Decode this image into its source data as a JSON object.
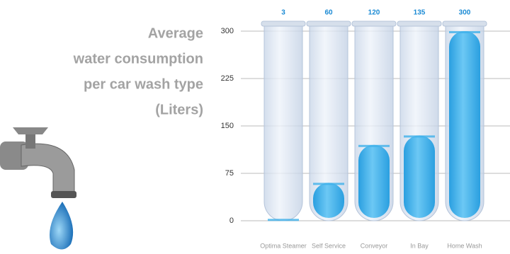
{
  "chart_data": {
    "type": "bar",
    "title": [
      "Average",
      "water consumption",
      "per car wash type",
      "(Liters)"
    ],
    "categories": [
      "Optima Steamer",
      "Self Service",
      "Conveyor",
      "In Bay",
      "Home Wash"
    ],
    "values": [
      3,
      60,
      120,
      135,
      300
    ],
    "color": "#3fb0ea",
    "ylim": [
      0,
      300
    ],
    "yticks": [
      0,
      75,
      150,
      225,
      300
    ],
    "grid": true
  }
}
